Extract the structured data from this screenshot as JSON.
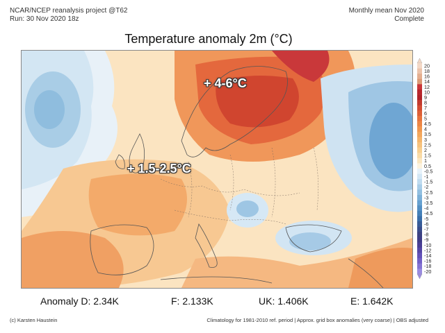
{
  "header": {
    "line1": "NCAR/NCEP reanalysis project @T62",
    "line2": "Run: 30 Nov 2020 18z",
    "right1": "Monthly mean Nov 2020",
    "right2": "Complete"
  },
  "title": "Temperature anomaly 2m (°C)",
  "annotations": {
    "scandinavia": "+ 4-6°C",
    "west_europe": "+ 1.5-2.5°C"
  },
  "colorbar": {
    "levels": [
      "20",
      "18",
      "16",
      "14",
      "12",
      "10",
      "9",
      "8",
      "7",
      "6",
      "5",
      "4.5",
      "4",
      "3.5",
      "3",
      "2.5",
      "2",
      "1.5",
      "1",
      "0.5",
      "-0.5",
      "-1",
      "-1.5",
      "-2",
      "-2.5",
      "-3",
      "-3.5",
      "-4",
      "-4.5",
      "-5",
      "-6",
      "-7",
      "-8",
      "-9",
      "-10",
      "-12",
      "-14",
      "-16",
      "-18",
      "-20"
    ],
    "colors": [
      "#f3d8c6",
      "#ecc3aa",
      "#e4ae8f",
      "#dc9a76",
      "#c9363a",
      "#b8272d",
      "#b02329",
      "#c33a2e",
      "#d34d33",
      "#dd5f37",
      "#e7733d",
      "#ed8645",
      "#f1974f",
      "#f3a75c",
      "#f5b56c",
      "#f6c27d",
      "#f8cf90",
      "#f9dba6",
      "#fbe7c0",
      "#fdf3de",
      "#e7f2fa",
      "#d3e7f5",
      "#bfdbef",
      "#a8cde8",
      "#92bfe0",
      "#7cb0d8",
      "#66a1d0",
      "#538fc4",
      "#4580b8",
      "#3a6ea9",
      "#385c98",
      "#3a4e8c",
      "#3c4282",
      "#403d87",
      "#4a3f95",
      "#5647a6",
      "#6352b8",
      "#7260c6",
      "#8473d2",
      "#9a8be0"
    ]
  },
  "stats": {
    "anomaly_d": "Anomaly D: 2.34K",
    "france": "F: 2.133K",
    "uk": "UK: 1.406K",
    "england": "E: 1.642K"
  },
  "footer": {
    "left": "(c) Karsten Haustein",
    "right": "Climatology for 1981-2010 ref. period | Approx. grid box anomalies (very coarse) | OBS adjusted"
  }
}
